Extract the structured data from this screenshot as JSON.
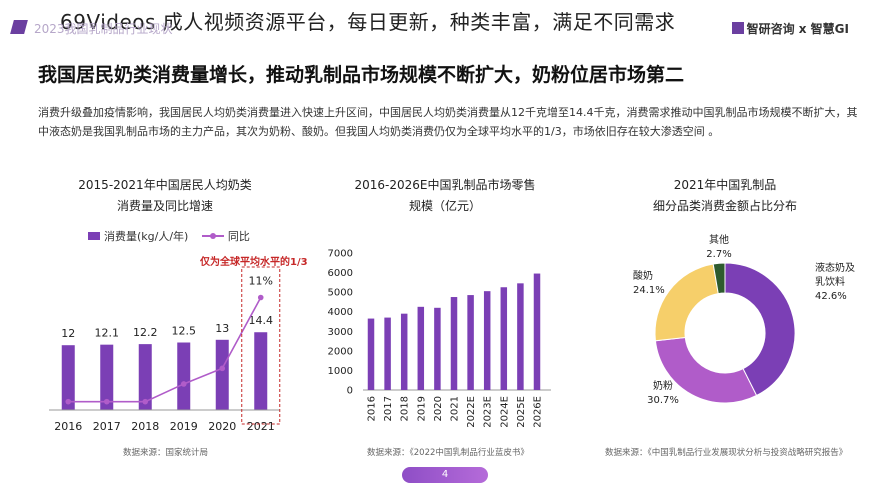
{
  "overlay_title": "69Videos 成人视频资源平台，每日更新，种类丰富，满足不同需求",
  "header": {
    "faded_text": "2023我国乳制品行业现状",
    "brand": "智研咨询 x 智慧GI"
  },
  "main_heading": "我国居民奶类消费量增长，推动乳制品市场规模不断扩大，奶粉位居市场第二",
  "paragraph": "消费升级叠加疫情影响，我国居民人均奶类消费量进入快速上升区间，中国居民人均奶类消费量从12千克增至14.4千克，消费需求推动中国乳制品市场规模不断扩大，其中液态奶是我国乳制品市场的主力产品，其次为奶粉、酸奶。但我国人均奶类消费仍仅为全球平均水平的1/3，市场依旧存在较大渗透空间 。",
  "page_number": "4",
  "colors": {
    "purple": "#7b3fb5",
    "line_purple": "#b05cc9",
    "yellow": "#f6cf6a",
    "dark_green": "#2e5b2e",
    "red": "#c62828"
  },
  "chart_data": [
    {
      "type": "bar",
      "title_line1": "2015-2021年中国居民人均奶类",
      "title_line2": "消费量及同比增速",
      "categories": [
        "2016",
        "2017",
        "2018",
        "2019",
        "2020",
        "2021"
      ],
      "series": [
        {
          "name": "消费量(kg/人/年)",
          "values": [
            12,
            12.1,
            12.2,
            12.5,
            13,
            14.4
          ],
          "labels": [
            "12",
            "12.1",
            "12.2",
            "12.5",
            "13",
            "14.4"
          ]
        },
        {
          "name": "同比",
          "values": [
            0.8,
            0.8,
            0.8,
            2.5,
            4.0,
            10.8
          ],
          "labels": [
            "",
            "",
            "",
            "",
            "",
            "11%"
          ]
        }
      ],
      "annotation": "仅为全球平均水平的1/3",
      "source": "数据来源：国家统计局"
    },
    {
      "type": "bar",
      "title_line1": "2016-2026E中国乳制品市场零售",
      "title_line2": "规模（亿元）",
      "categories": [
        "2016",
        "2017",
        "2018",
        "2019",
        "2020",
        "2021",
        "2022E",
        "2023E",
        "2024E",
        "2025E",
        "2026E"
      ],
      "values": [
        3650,
        3700,
        3900,
        4250,
        4200,
        4750,
        4850,
        5050,
        5250,
        5450,
        5950
      ],
      "y_ticks": [
        "0",
        "1000",
        "2000",
        "3000",
        "4000",
        "5000",
        "6000",
        "7000"
      ],
      "ylim": [
        0,
        7000
      ],
      "source": "数据来源：《2022中国乳制品行业蓝皮书》"
    },
    {
      "type": "pie",
      "title_line1": "2021年中国乳制品",
      "title_line2": "细分品类消费金额占比分布",
      "slices": [
        {
          "name": "液态奶及乳饮料",
          "value": 42.6,
          "label": "42.6%",
          "name_line1": "液态奶及",
          "name_line2": "乳饮料",
          "color": "#7b3fb5"
        },
        {
          "name": "奶粉",
          "value": 30.7,
          "label": "30.7%",
          "color": "#b05cc9"
        },
        {
          "name": "酸奶",
          "value": 24.1,
          "label": "24.1%",
          "color": "#f6cf6a"
        },
        {
          "name": "其他",
          "value": 2.7,
          "label": "2.7%",
          "color": "#2e5b2e"
        }
      ],
      "source": "数据来源：《中国乳制品行业发展现状分析与投资战略研究报告》"
    }
  ]
}
